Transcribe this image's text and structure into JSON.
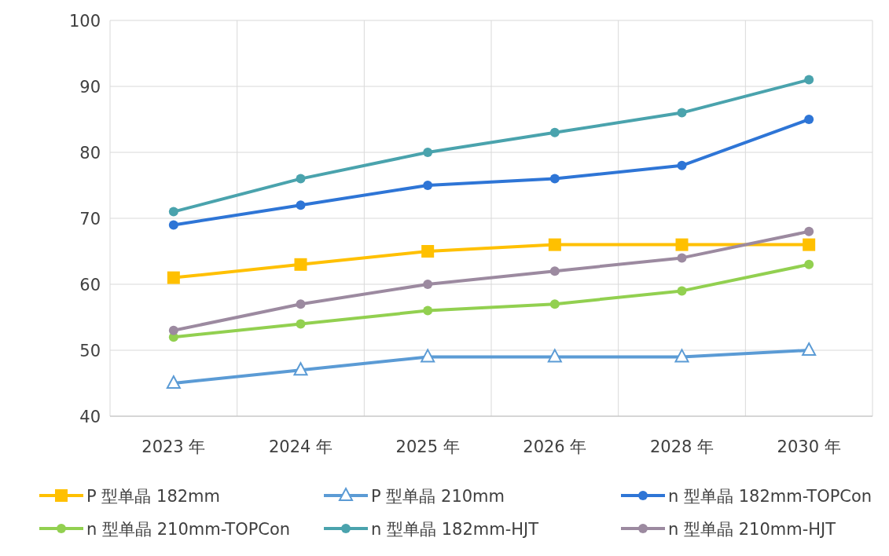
{
  "chart_data": {
    "type": "line",
    "categories": [
      "2023 年",
      "2024 年",
      "2025 年",
      "2026 年",
      "2028 年",
      "2030 年"
    ],
    "ylim": [
      40,
      100
    ],
    "yticks": [
      40,
      50,
      60,
      70,
      80,
      90,
      100
    ],
    "grid": true,
    "legend": "bottom",
    "series": [
      {
        "name": "P 型单晶 182mm",
        "color": "#ffc000",
        "marker": "square",
        "values": [
          61,
          63,
          65,
          66,
          66,
          66
        ]
      },
      {
        "name": "P 型单晶 210mm",
        "color": "#5b9bd5",
        "marker": "triangle",
        "values": [
          45,
          47,
          49,
          49,
          49,
          50
        ]
      },
      {
        "name": "n 型单晶 182mm-TOPCon",
        "color": "#2e75d6",
        "marker": "circle",
        "values": [
          69,
          72,
          75,
          76,
          78,
          85
        ]
      },
      {
        "name": "n 型单晶 210mm-TOPCon",
        "color": "#92d050",
        "marker": "circle",
        "values": [
          52,
          54,
          56,
          57,
          59,
          63
        ]
      },
      {
        "name": "n 型单晶 182mm-HJT",
        "color": "#4aa3ad",
        "marker": "circle",
        "values": [
          71,
          76,
          80,
          83,
          86,
          91
        ]
      },
      {
        "name": "n 型单晶 210mm-HJT",
        "color": "#9c8aa0",
        "marker": "circle",
        "values": [
          53,
          57,
          60,
          62,
          64,
          68
        ]
      }
    ]
  }
}
